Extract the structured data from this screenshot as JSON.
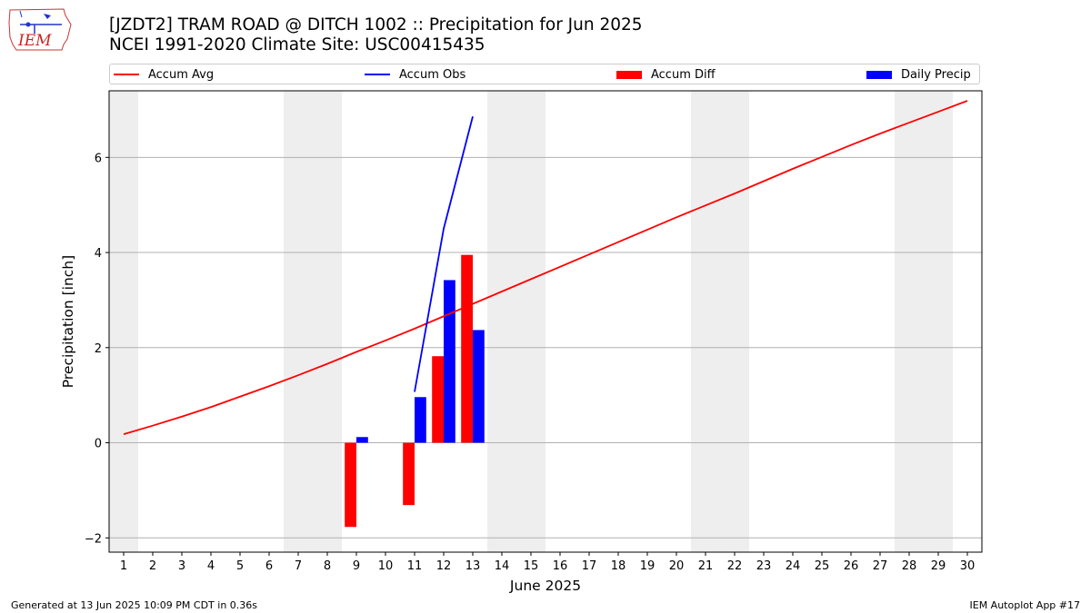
{
  "header": {
    "title": "[JZDT2] TRAM ROAD @ DITCH 1002 :: Precipitation for Jun 2025",
    "subtitle": "NCEI 1991-2020 Climate Site: USC00415435",
    "logo_text": "IEM"
  },
  "footer": {
    "generated": "Generated at 13 Jun 2025 10:09 PM CDT in 0.36s",
    "app": "IEM Autoplot App #17"
  },
  "chart_data": {
    "type": "bar",
    "xlabel": "June 2025",
    "ylabel": "Precipitation [inch]",
    "xlim": [
      0.5,
      30.5
    ],
    "ylim": [
      -2.3,
      7.4
    ],
    "x_ticks": [
      1,
      2,
      3,
      4,
      5,
      6,
      7,
      8,
      9,
      10,
      11,
      12,
      13,
      14,
      15,
      16,
      17,
      18,
      19,
      20,
      21,
      22,
      23,
      24,
      25,
      26,
      27,
      28,
      29,
      30
    ],
    "y_ticks": [
      -2,
      0,
      2,
      4,
      6
    ],
    "grid": "y",
    "legend_position": "top",
    "weekend_shading_days": [
      1,
      7,
      8,
      14,
      15,
      21,
      22,
      28,
      29
    ],
    "legend": [
      {
        "name": "Accum Avg",
        "kind": "line",
        "color": "#ff0000"
      },
      {
        "name": "Accum Obs",
        "kind": "line",
        "color": "#0000ff"
      },
      {
        "name": "Accum Diff",
        "kind": "bar",
        "color": "#ff0000"
      },
      {
        "name": "Daily Precip",
        "kind": "bar",
        "color": "#0000ff"
      }
    ],
    "series": [
      {
        "name": "Accum Avg",
        "type": "line",
        "color": "#ff0000",
        "x": [
          1,
          2,
          3,
          4,
          5,
          6,
          7,
          8,
          9,
          10,
          11,
          12,
          13,
          14,
          15,
          16,
          17,
          18,
          19,
          20,
          21,
          22,
          23,
          24,
          25,
          26,
          27,
          28,
          29,
          30
        ],
        "values": [
          0.18,
          0.36,
          0.55,
          0.75,
          0.97,
          1.19,
          1.42,
          1.66,
          1.91,
          2.15,
          2.4,
          2.66,
          2.92,
          3.18,
          3.44,
          3.7,
          3.96,
          4.22,
          4.48,
          4.74,
          4.99,
          5.24,
          5.5,
          5.76,
          6.01,
          6.26,
          6.5,
          6.73,
          6.96,
          7.19
        ]
      },
      {
        "name": "Accum Obs",
        "type": "line",
        "color": "#0000ff",
        "x": [
          11,
          12,
          13
        ],
        "values": [
          1.07,
          4.5,
          6.86
        ]
      },
      {
        "name": "Accum Diff",
        "type": "bar",
        "color": "#ff0000",
        "x": [
          9,
          11,
          12,
          13
        ],
        "values": [
          -1.77,
          -1.31,
          1.82,
          3.95
        ]
      },
      {
        "name": "Daily Precip",
        "type": "bar",
        "color": "#0000ff",
        "x": [
          9,
          11,
          12,
          13
        ],
        "values": [
          0.12,
          0.96,
          3.42,
          2.37
        ]
      }
    ]
  }
}
